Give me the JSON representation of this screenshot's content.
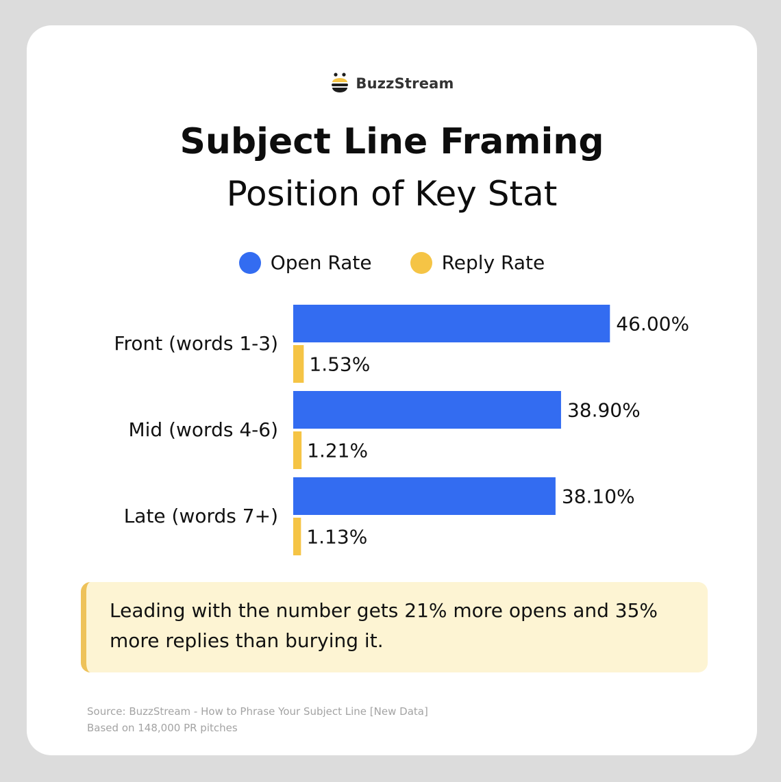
{
  "brand": {
    "name": "BuzzStream"
  },
  "colors": {
    "open": "#336cf1",
    "reply": "#f5c445",
    "callout_bg": "#fdf4d3",
    "callout_border": "#eec25a"
  },
  "chart_data": {
    "type": "bar",
    "orientation": "horizontal",
    "title": "Subject Line Framing",
    "subtitle": "Position of Key Stat",
    "categories": [
      "Front (words 1-3)",
      "Mid (words 4-6)",
      "Late (words 7+)"
    ],
    "series": [
      {
        "name": "Open Rate",
        "values": [
          46.0,
          38.9,
          38.1
        ],
        "labels": [
          "46.00%",
          "38.90%",
          "38.10%"
        ]
      },
      {
        "name": "Reply Rate",
        "values": [
          1.53,
          1.21,
          1.13
        ],
        "labels": [
          "1.53%",
          "1.21%",
          "1.13%"
        ]
      }
    ],
    "legend_position": "top-center",
    "grid": false
  },
  "callout": {
    "text": "Leading with the number gets 21% more opens and 35% more replies than burying it."
  },
  "source": {
    "line1": "Source: BuzzStream - How to Phrase Your Subject Line [New Data]",
    "line2": "Based on 148,000 PR pitches"
  }
}
